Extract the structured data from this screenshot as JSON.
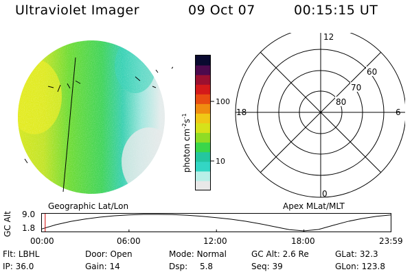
{
  "header": {
    "instrument": "Ultraviolet Imager",
    "date": "09 Oct 07",
    "time": "00:15:15 UT"
  },
  "colorbar": {
    "label": "photon cm",
    "label_exp1": "-2",
    "label_mid": "s",
    "label_exp2": "-1",
    "tick_100": "100",
    "tick_10": "10",
    "scale": "log",
    "colors": [
      "#e8e8e8",
      "#b9efe8",
      "#33d6c4",
      "#24c6a0",
      "#3ad64a",
      "#8fdc25",
      "#d6e21a",
      "#f0c816",
      "#f08c10",
      "#e84c12",
      "#d41a1a",
      "#9b1030",
      "#4d0a4d",
      "#0a0a30"
    ]
  },
  "panels": {
    "left_caption": "Geographic Lat/Lon",
    "right_caption": "Apex MLat/MLT"
  },
  "polar_grid": {
    "mlt_labels": {
      "top": "12",
      "left": "18",
      "right": "6",
      "bottom": "0"
    },
    "lat_labels": [
      "60",
      "70",
      "80"
    ]
  },
  "altitude_plot": {
    "ylabel": "GC Alt",
    "ymax_label": "9.0",
    "ymin_label": "1.8",
    "xticks": [
      "00:00",
      "06:00",
      "12:00",
      "18:00",
      "23:59"
    ],
    "trace": {
      "x_hours": [
        0,
        1,
        2,
        3,
        4,
        5,
        6,
        7,
        8,
        9,
        10,
        11,
        12,
        13,
        14,
        15,
        16,
        17,
        18,
        19,
        20,
        21,
        22,
        23,
        23.98
      ],
      "gc_alt_re": [
        2.6,
        4.5,
        5.9,
        7.0,
        7.8,
        8.4,
        8.8,
        9.0,
        9.0,
        8.9,
        8.6,
        8.2,
        7.6,
        6.9,
        6.0,
        4.9,
        3.6,
        2.3,
        1.8,
        2.4,
        4.2,
        5.9,
        7.2,
        8.2,
        8.8
      ]
    },
    "marker_hours": 0.25
  },
  "info": {
    "row1": {
      "flt_label": "Flt:",
      "flt_value": "LBHL",
      "door_label": "Door:",
      "door_value": "Open",
      "mode_label": "Mode:",
      "mode_value": "Normal",
      "gcalt_label": "GC Alt:",
      "gcalt_value": "2.6 Re",
      "glat_label": "GLat:",
      "glat_value": "32.3"
    },
    "row2": {
      "ip_label": "IP:",
      "ip_value": "36.0",
      "gain_label": "Gain:",
      "gain_value": "14",
      "dsp_label": "Dsp:",
      "dsp_value": "5.8",
      "seq_label": "Seq:",
      "seq_value": "39",
      "glon_label": "GLon:",
      "glon_value": "123.8"
    }
  }
}
